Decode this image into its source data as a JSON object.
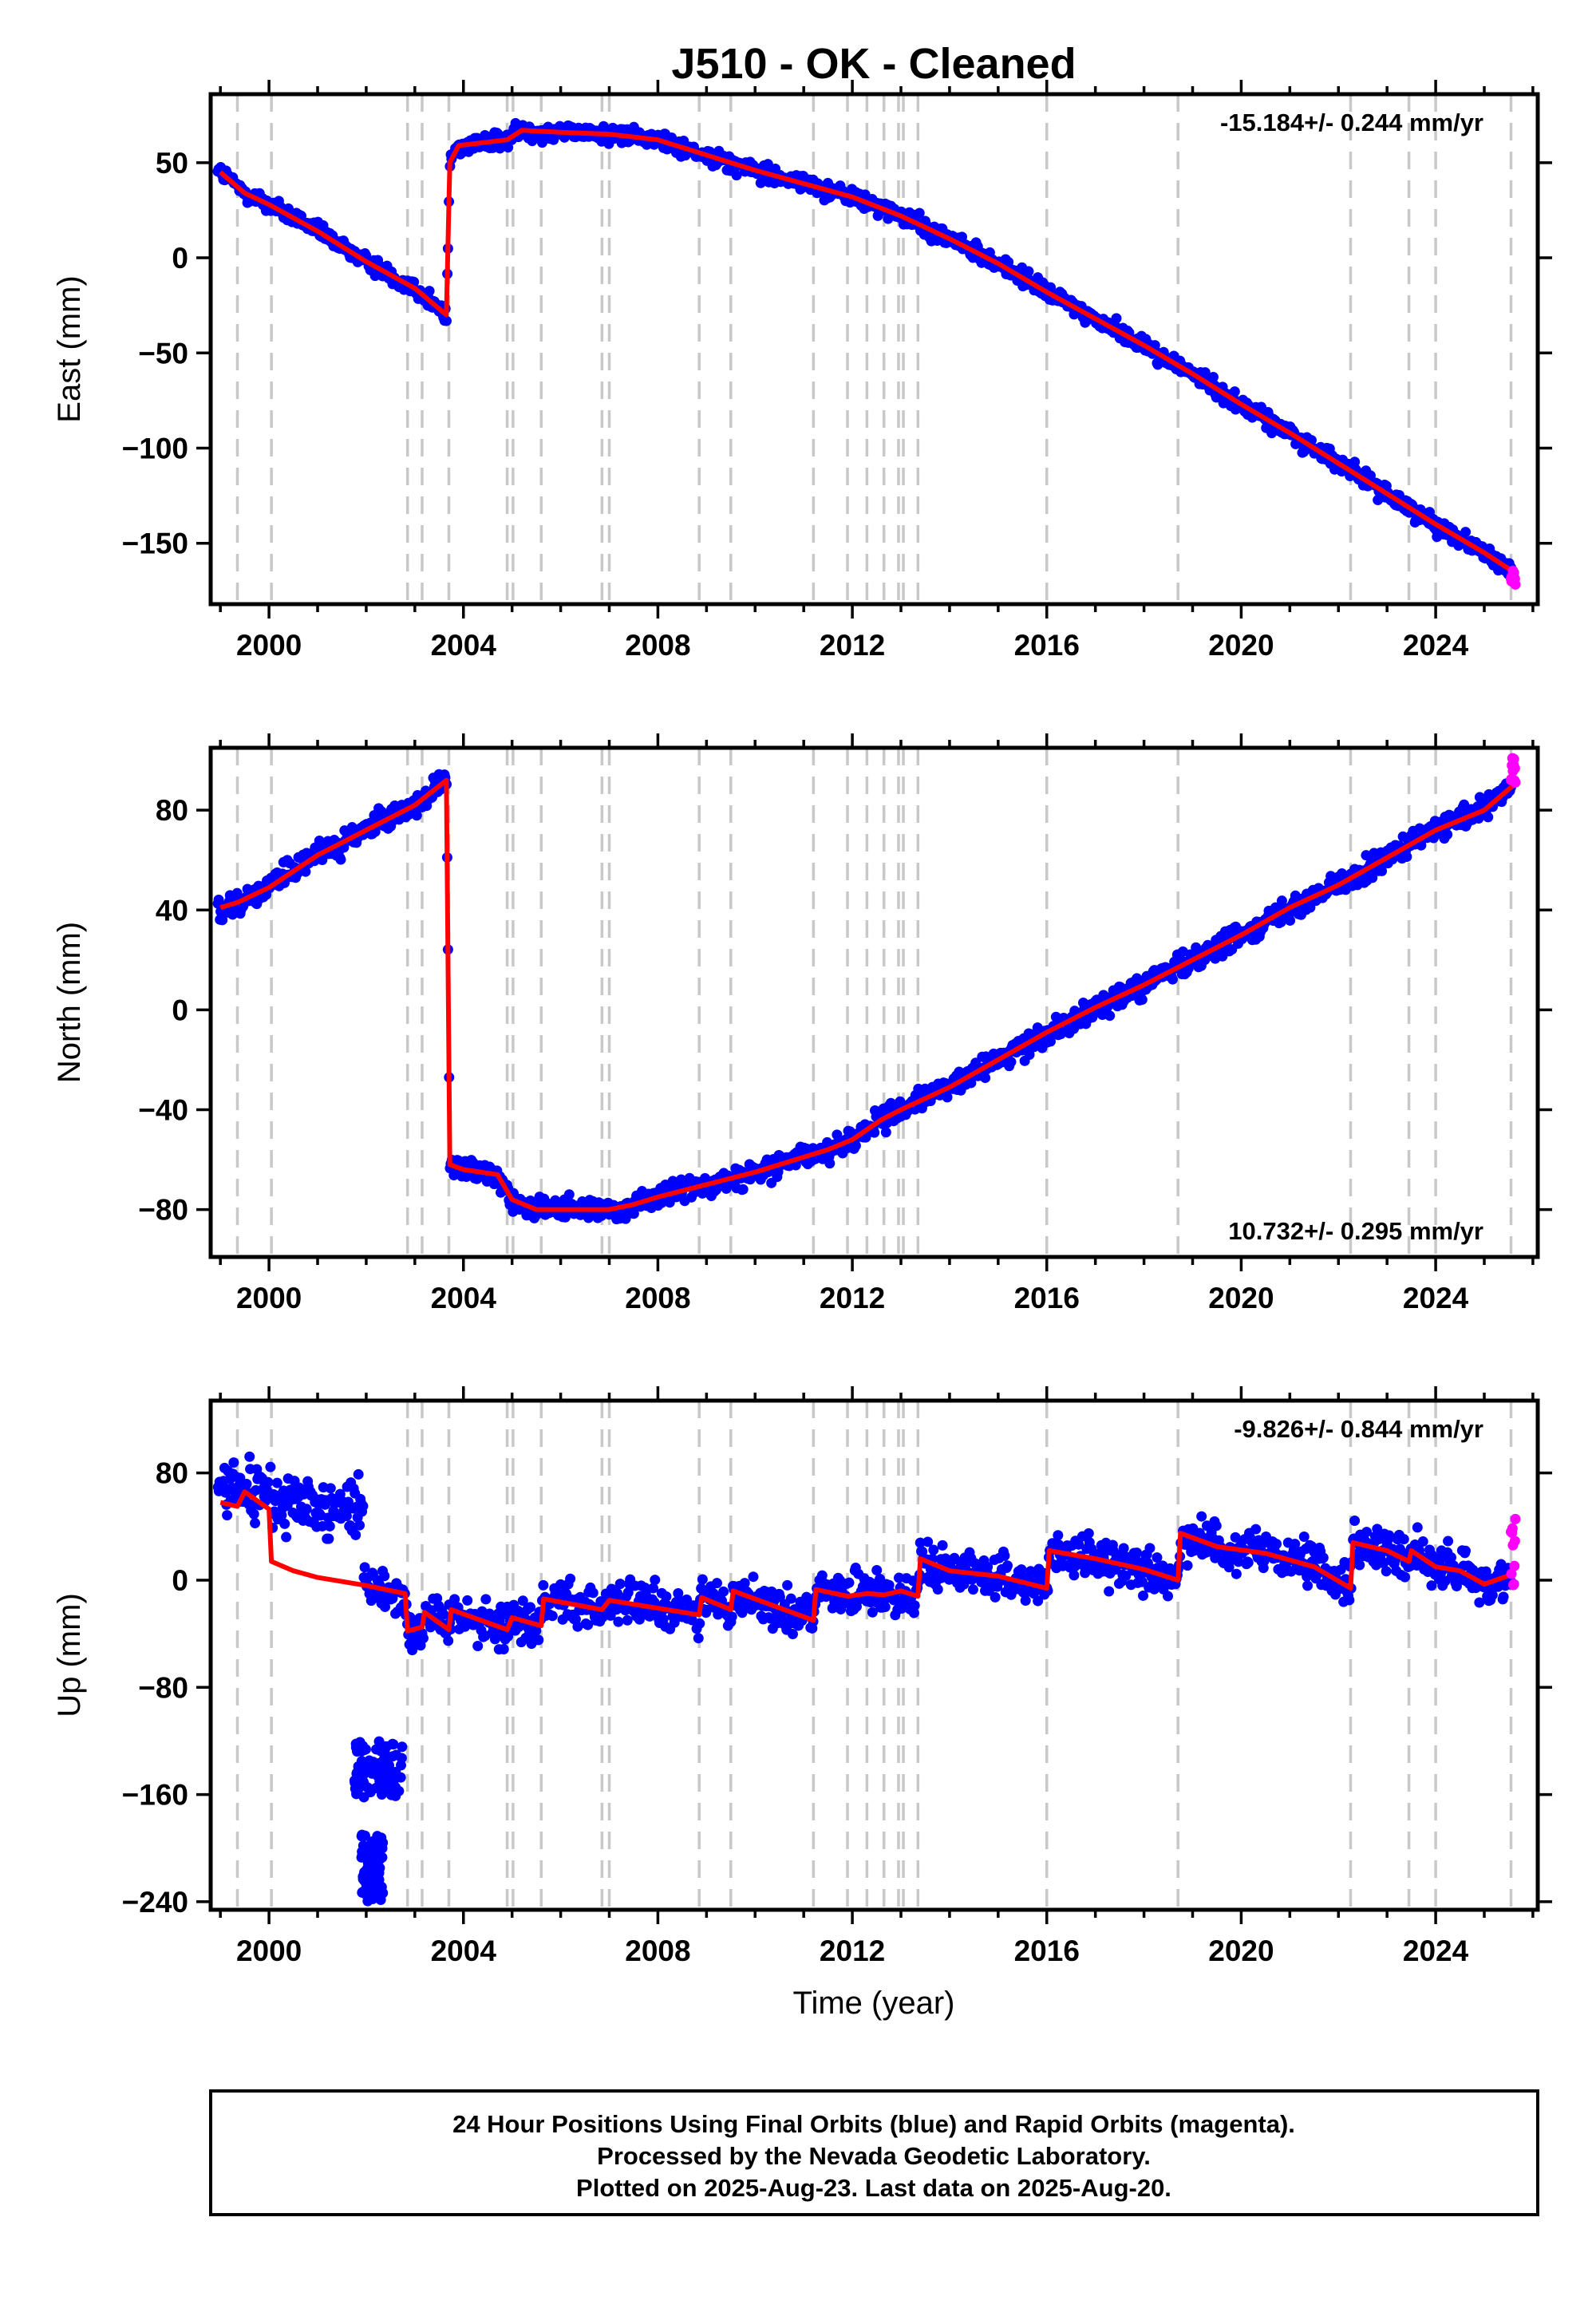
{
  "title": "J510  - OK - Cleaned",
  "footer": {
    "lines": [
      "24 Hour Positions Using Final Orbits (blue) and Rapid Orbits (magenta).",
      "Processed by the Nevada Geodetic Laboratory.",
      "Plotted on 2025-Aug-23. Last data on 2025-Aug-20."
    ]
  },
  "colors": {
    "final_points": "#0000ff",
    "rapid_points": "#ff00ff",
    "model_line": "#ff0000",
    "event_lines": "#c8c8c8"
  },
  "chart_data": [
    {
      "type": "scatter",
      "name": "east",
      "ylabel": "East (mm)",
      "xlabel": "",
      "xlim": [
        1998.8,
        2026.1
      ],
      "ylim": [
        -182,
        86
      ],
      "xticks": [
        2000,
        2004,
        2008,
        2012,
        2016,
        2020,
        2024
      ],
      "yticks": [
        50,
        0,
        -50,
        -100,
        -150
      ],
      "ytick_labels": [
        "50",
        "0",
        "−50",
        "−100",
        "−150"
      ],
      "rate_label": "-15.184+/- 0.244 mm/yr",
      "rate_position": "top-right",
      "grid": false,
      "event_lines_x": [
        1999.35,
        2000.05,
        2002.85,
        2003.15,
        2003.7,
        2004.9,
        2005.02,
        2005.6,
        2006.85,
        2007.0,
        2008.85,
        2009.5,
        2011.2,
        2011.9,
        2012.3,
        2012.65,
        2012.95,
        2013.05,
        2013.35,
        2016.0,
        2018.7,
        2022.25,
        2023.45,
        2024.0,
        2025.55
      ],
      "model_points": [
        [
          1999.0,
          45
        ],
        [
          1999.5,
          34
        ],
        [
          2000.0,
          28
        ],
        [
          2001.0,
          14
        ],
        [
          2002.0,
          -2
        ],
        [
          2003.0,
          -16
        ],
        [
          2003.65,
          -30
        ],
        [
          2003.72,
          50
        ],
        [
          2003.9,
          59
        ],
        [
          2004.9,
          62
        ],
        [
          2005.2,
          67
        ],
        [
          2006.0,
          66
        ],
        [
          2007.0,
          65
        ],
        [
          2008.0,
          62
        ],
        [
          2009.0,
          54
        ],
        [
          2010.0,
          46
        ],
        [
          2011.0,
          39
        ],
        [
          2012.0,
          32
        ],
        [
          2013.0,
          22
        ],
        [
          2014.0,
          10
        ],
        [
          2015.0,
          -3
        ],
        [
          2016.0,
          -18
        ],
        [
          2017.0,
          -32
        ],
        [
          2018.0,
          -46
        ],
        [
          2019.0,
          -61
        ],
        [
          2020.0,
          -77
        ],
        [
          2021.0,
          -92
        ],
        [
          2022.0,
          -108
        ],
        [
          2023.0,
          -124
        ],
        [
          2024.0,
          -140
        ],
        [
          2025.0,
          -155
        ],
        [
          2025.6,
          -165
        ]
      ],
      "final_data_range": [
        1998.95,
        2025.55
      ],
      "rapid_data": {
        "x_range": [
          2025.55,
          2025.64
        ],
        "y_range": [
          -172,
          -164
        ]
      }
    },
    {
      "type": "scatter",
      "name": "north",
      "ylabel": "North (mm)",
      "xlabel": "",
      "xlim": [
        1998.8,
        2026.1
      ],
      "ylim": [
        -99,
        105
      ],
      "xticks": [
        2000,
        2004,
        2008,
        2012,
        2016,
        2020,
        2024
      ],
      "yticks": [
        80,
        40,
        0,
        -40,
        -80
      ],
      "ytick_labels": [
        "80",
        "40",
        "0",
        "−40",
        "−80"
      ],
      "rate_label": "10.732+/- 0.295 mm/yr",
      "rate_position": "bottom-right",
      "grid": false,
      "event_lines_x": [
        1999.35,
        2000.05,
        2002.85,
        2003.15,
        2003.7,
        2004.9,
        2005.02,
        2005.6,
        2006.85,
        2007.0,
        2008.85,
        2009.5,
        2011.2,
        2011.9,
        2012.3,
        2012.65,
        2012.95,
        2013.05,
        2013.35,
        2016.0,
        2018.7,
        2022.25,
        2023.45,
        2024.0,
        2025.55
      ],
      "model_points": [
        [
          1999.0,
          41
        ],
        [
          1999.35,
          43
        ],
        [
          2000.0,
          49
        ],
        [
          2001.0,
          62
        ],
        [
          2002.0,
          72
        ],
        [
          2003.0,
          82
        ],
        [
          2003.65,
          92
        ],
        [
          2003.72,
          -62
        ],
        [
          2004.0,
          -64
        ],
        [
          2004.7,
          -66
        ],
        [
          2005.0,
          -76
        ],
        [
          2005.5,
          -80
        ],
        [
          2006.0,
          -80
        ],
        [
          2007.0,
          -80
        ],
        [
          2007.5,
          -78
        ],
        [
          2008.0,
          -75
        ],
        [
          2009.0,
          -70
        ],
        [
          2010.0,
          -65
        ],
        [
          2011.0,
          -59
        ],
        [
          2011.5,
          -56
        ],
        [
          2012.0,
          -52
        ],
        [
          2012.6,
          -44
        ],
        [
          2013.0,
          -40
        ],
        [
          2014.0,
          -31
        ],
        [
          2015.0,
          -20
        ],
        [
          2016.0,
          -9
        ],
        [
          2017.0,
          1
        ],
        [
          2018.0,
          10
        ],
        [
          2019.0,
          20
        ],
        [
          2020.0,
          30
        ],
        [
          2021.0,
          41
        ],
        [
          2022.0,
          50
        ],
        [
          2023.0,
          61
        ],
        [
          2024.0,
          72
        ],
        [
          2025.0,
          80
        ],
        [
          2025.6,
          90
        ]
      ],
      "final_data_range": [
        1998.95,
        2025.55
      ],
      "rapid_data": {
        "x_range": [
          2025.55,
          2025.64
        ],
        "y_range": [
          90,
          101
        ]
      }
    },
    {
      "type": "scatter",
      "name": "up",
      "ylabel": "Up (mm)",
      "xlabel": "Time (year)",
      "xlim": [
        1998.8,
        2026.1
      ],
      "ylim": [
        -246,
        134
      ],
      "xticks": [
        2000,
        2004,
        2008,
        2012,
        2016,
        2020,
        2024
      ],
      "yticks": [
        80,
        0,
        -80,
        -160,
        -240
      ],
      "ytick_labels": [
        "80",
        "0",
        "−80",
        "−160",
        "−240"
      ],
      "rate_label": "-9.826+/- 0.844 mm/yr",
      "rate_position": "top-right",
      "grid": false,
      "event_lines_x": [
        1999.35,
        2000.05,
        2002.85,
        2003.15,
        2003.7,
        2004.9,
        2005.02,
        2005.6,
        2006.85,
        2007.0,
        2008.85,
        2009.5,
        2011.2,
        2011.9,
        2012.3,
        2012.65,
        2012.95,
        2013.05,
        2013.35,
        2016.0,
        2018.7,
        2022.25,
        2023.45,
        2024.0,
        2025.55
      ],
      "model_points": [
        [
          1999.0,
          58
        ],
        [
          1999.35,
          55
        ],
        [
          1999.5,
          66
        ],
        [
          2000.0,
          53
        ],
        [
          2000.05,
          14
        ],
        [
          2000.5,
          7
        ],
        [
          2001.0,
          2
        ],
        [
          2002.0,
          -4
        ],
        [
          2002.8,
          -10
        ],
        [
          2002.85,
          -38
        ],
        [
          2003.15,
          -35
        ],
        [
          2003.2,
          -24
        ],
        [
          2003.7,
          -37
        ],
        [
          2003.75,
          -22
        ],
        [
          2004.9,
          -37
        ],
        [
          2005.0,
          -28
        ],
        [
          2005.6,
          -34
        ],
        [
          2005.65,
          -14
        ],
        [
          2006.85,
          -22
        ],
        [
          2007.0,
          -15
        ],
        [
          2008.85,
          -26
        ],
        [
          2008.9,
          -13
        ],
        [
          2009.5,
          -22
        ],
        [
          2009.55,
          -8
        ],
        [
          2011.2,
          -30
        ],
        [
          2011.25,
          -7
        ],
        [
          2011.9,
          -12
        ],
        [
          2012.3,
          -10
        ],
        [
          2012.65,
          -11
        ],
        [
          2013.0,
          -8
        ],
        [
          2013.35,
          -12
        ],
        [
          2013.4,
          16
        ],
        [
          2014.0,
          7
        ],
        [
          2015.0,
          3
        ],
        [
          2016.0,
          -6
        ],
        [
          2016.05,
          22
        ],
        [
          2017.0,
          16
        ],
        [
          2018.0,
          8
        ],
        [
          2018.7,
          0
        ],
        [
          2018.75,
          35
        ],
        [
          2019.5,
          25
        ],
        [
          2020.5,
          20
        ],
        [
          2021.5,
          10
        ],
        [
          2022.25,
          -6
        ],
        [
          2022.3,
          28
        ],
        [
          2023.0,
          22
        ],
        [
          2023.45,
          14
        ],
        [
          2023.5,
          22
        ],
        [
          2024.0,
          10
        ],
        [
          2024.5,
          7
        ],
        [
          2025.0,
          -3
        ],
        [
          2025.55,
          4
        ]
      ],
      "final_data_range": [
        1998.95,
        2025.55
      ],
      "outlier_clusters": [
        {
          "x_range": [
            2001.75,
            2002.75
          ],
          "y_range": [
            -162,
            -120
          ]
        },
        {
          "x_range": [
            2001.9,
            2002.35
          ],
          "y_range": [
            -240,
            -190
          ]
        }
      ],
      "rapid_data": {
        "x_range": [
          2025.55,
          2025.64
        ],
        "y_range": [
          -5,
          46
        ]
      }
    }
  ]
}
